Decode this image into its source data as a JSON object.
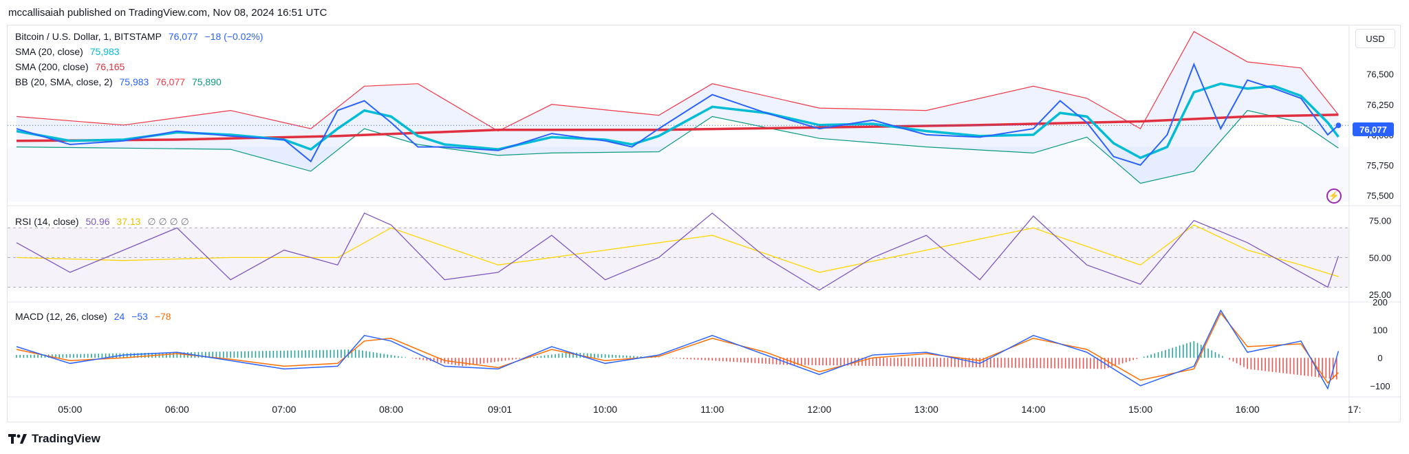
{
  "publisher": "mccallisaiah published on TradingView.com, Nov 08, 2024 16:51 UTC",
  "brand": "TradingView",
  "currency_button": "USD",
  "last_price_tag": "76,077",
  "colors": {
    "price": "#2962ff",
    "sma20": "#00bcd4",
    "sma200": "#e03040",
    "bb_upper": "#f23645",
    "bb_lower": "#089981",
    "bb_fill": "#2962ff",
    "rsi": "#7e57c2",
    "rsi_ma": "#ffd600",
    "macd": "#2962ff",
    "signal": "#ff6d00",
    "hist_pos": "#26a69a",
    "hist_neg": "#ef5350"
  },
  "legend": {
    "main": {
      "name": "Bitcoin / U.S. Dollar, 1, BITSTAMP",
      "value": "76,077",
      "change": "−18 (−0.02%)"
    },
    "sma20": {
      "name": "SMA (20, close)",
      "value": "75,983"
    },
    "sma200": {
      "name": "SMA (200, close)",
      "value": "76,165"
    },
    "bb": {
      "name": "BB (20, SMA, close, 2)",
      "v1": "75,983",
      "v2": "76,077",
      "v3": "75,890"
    },
    "rsi": {
      "name": "RSI (14, close)",
      "v1": "50.96",
      "v2": "37.13",
      "rest": "∅ ∅ ∅ ∅"
    },
    "macd": {
      "name": "MACD (12, 26, close)",
      "v1": "24",
      "v2": "−53",
      "v3": "−78"
    }
  },
  "chart_data": [
    {
      "type": "line",
      "title": "Bitcoin / U.S. Dollar, 1, BITSTAMP",
      "x_ticks": [
        "05:00",
        "06:00",
        "07:00",
        "08:00",
        "09:01",
        "10:00",
        "11:00",
        "12:00",
        "13:00",
        "14:00",
        "15:00",
        "16:00",
        "17:"
      ],
      "y_ticks": [
        "76,500",
        "76,250",
        "76,000",
        "75,750",
        "75,500"
      ],
      "ylim": [
        75450,
        76900
      ],
      "series": [
        {
          "name": "price",
          "x": [
            "04:30",
            "05:00",
            "05:30",
            "06:00",
            "06:30",
            "07:00",
            "07:15",
            "07:30",
            "07:45",
            "08:00",
            "08:15",
            "08:30",
            "09:00",
            "09:30",
            "10:00",
            "10:15",
            "10:30",
            "11:00",
            "11:30",
            "12:00",
            "12:30",
            "13:00",
            "13:30",
            "14:00",
            "14:15",
            "14:30",
            "14:45",
            "15:00",
            "15:15",
            "15:30",
            "15:45",
            "16:00",
            "16:15",
            "16:30",
            "16:45",
            "16:51"
          ],
          "values": [
            76050,
            75920,
            75950,
            76030,
            75990,
            75960,
            75780,
            76200,
            76280,
            76100,
            75900,
            75900,
            75870,
            76010,
            75950,
            75900,
            76050,
            76330,
            76180,
            76050,
            76120,
            76000,
            75980,
            76050,
            76280,
            76100,
            75820,
            75750,
            76000,
            76580,
            76050,
            76450,
            76380,
            76300,
            76000,
            76077
          ]
        },
        {
          "name": "SMA (20, close)",
          "x": [
            "04:30",
            "05:00",
            "05:30",
            "06:00",
            "06:30",
            "07:00",
            "07:15",
            "07:30",
            "07:45",
            "08:00",
            "08:15",
            "08:30",
            "09:00",
            "09:30",
            "10:00",
            "10:15",
            "10:30",
            "11:00",
            "11:30",
            "12:00",
            "12:30",
            "13:00",
            "13:30",
            "14:00",
            "14:15",
            "14:30",
            "14:45",
            "15:00",
            "15:15",
            "15:30",
            "15:45",
            "16:00",
            "16:15",
            "16:30",
            "16:45",
            "16:51"
          ],
          "values": [
            76030,
            75950,
            75960,
            76020,
            76000,
            75960,
            75880,
            76050,
            76200,
            76150,
            75990,
            75920,
            75880,
            75980,
            75960,
            75920,
            75990,
            76230,
            76180,
            76080,
            76090,
            76030,
            75990,
            76000,
            76180,
            76150,
            75930,
            75810,
            75900,
            76350,
            76420,
            76380,
            76400,
            76320,
            76100,
            75983
          ]
        },
        {
          "name": "SMA (200, close)",
          "x": [
            "04:30",
            "06:00",
            "07:30",
            "09:00",
            "10:30",
            "12:00",
            "13:30",
            "15:00",
            "16:00",
            "16:51"
          ],
          "values": [
            75950,
            75960,
            75990,
            76040,
            76040,
            76060,
            76080,
            76110,
            76150,
            76165
          ]
        },
        {
          "name": "BB upper",
          "x": [
            "04:30",
            "05:30",
            "06:30",
            "07:15",
            "07:45",
            "08:15",
            "09:00",
            "09:30",
            "10:30",
            "11:00",
            "12:00",
            "13:00",
            "14:00",
            "14:30",
            "15:00",
            "15:30",
            "16:00",
            "16:30",
            "16:51"
          ],
          "values": [
            76150,
            76080,
            76200,
            76050,
            76400,
            76420,
            76030,
            76250,
            76160,
            76420,
            76220,
            76200,
            76400,
            76300,
            76050,
            76850,
            76600,
            76550,
            76165
          ]
        },
        {
          "name": "BB lower",
          "x": [
            "04:30",
            "05:30",
            "06:30",
            "07:15",
            "07:45",
            "08:15",
            "09:00",
            "09:30",
            "10:30",
            "11:00",
            "12:00",
            "13:00",
            "14:00",
            "14:30",
            "15:00",
            "15:30",
            "16:00",
            "16:30",
            "16:51"
          ],
          "values": [
            75900,
            75890,
            75880,
            75700,
            76050,
            75920,
            75830,
            75850,
            75860,
            76150,
            75970,
            75900,
            75850,
            75980,
            75600,
            75700,
            76200,
            76100,
            75890
          ]
        }
      ]
    },
    {
      "type": "line",
      "title": "RSI (14, close)",
      "y_ticks": [
        "75.00",
        "50.00",
        "25.00"
      ],
      "ylim": [
        20,
        85
      ],
      "series": [
        {
          "name": "RSI",
          "x": [
            "04:30",
            "05:00",
            "05:30",
            "06:00",
            "06:30",
            "07:00",
            "07:30",
            "07:45",
            "08:00",
            "08:30",
            "09:00",
            "09:30",
            "10:00",
            "10:30",
            "11:00",
            "11:30",
            "12:00",
            "12:30",
            "13:00",
            "13:30",
            "14:00",
            "14:30",
            "15:00",
            "15:30",
            "16:00",
            "16:30",
            "16:45",
            "16:51"
          ],
          "values": [
            60,
            40,
            55,
            70,
            35,
            55,
            45,
            80,
            72,
            35,
            40,
            65,
            35,
            50,
            80,
            50,
            28,
            50,
            65,
            35,
            78,
            45,
            32,
            75,
            60,
            40,
            30,
            50.96
          ]
        },
        {
          "name": "RSI MA",
          "x": [
            "04:30",
            "05:30",
            "06:30",
            "07:30",
            "08:00",
            "09:00",
            "10:00",
            "11:00",
            "12:00",
            "13:00",
            "14:00",
            "15:00",
            "15:30",
            "16:00",
            "16:30",
            "16:51"
          ],
          "values": [
            50,
            48,
            50,
            50,
            70,
            45,
            55,
            65,
            40,
            55,
            70,
            45,
            72,
            55,
            45,
            37.13
          ]
        }
      ]
    },
    {
      "type": "line",
      "title": "MACD (12, 26, close)",
      "y_ticks": [
        "200",
        "100",
        "0",
        "−100"
      ],
      "ylim": [
        -140,
        200
      ],
      "series": [
        {
          "name": "MACD",
          "x": [
            "04:30",
            "05:00",
            "05:30",
            "06:00",
            "06:30",
            "07:00",
            "07:30",
            "07:45",
            "08:00",
            "08:30",
            "09:00",
            "09:30",
            "10:00",
            "10:30",
            "11:00",
            "11:30",
            "12:00",
            "12:30",
            "13:00",
            "13:30",
            "14:00",
            "14:30",
            "15:00",
            "15:30",
            "15:45",
            "16:00",
            "16:30",
            "16:45",
            "16:51"
          ],
          "values": [
            40,
            -20,
            10,
            20,
            -10,
            -40,
            -30,
            80,
            60,
            -30,
            -40,
            40,
            -20,
            10,
            80,
            10,
            -60,
            10,
            20,
            -20,
            80,
            20,
            -100,
            -30,
            170,
            20,
            60,
            -110,
            24
          ]
        },
        {
          "name": "Signal",
          "x": [
            "04:30",
            "05:00",
            "05:30",
            "06:00",
            "06:30",
            "07:00",
            "07:30",
            "07:45",
            "08:00",
            "08:30",
            "09:00",
            "09:30",
            "10:00",
            "10:30",
            "11:00",
            "11:30",
            "12:00",
            "12:30",
            "13:00",
            "13:30",
            "14:00",
            "14:30",
            "15:00",
            "15:30",
            "15:45",
            "16:00",
            "16:30",
            "16:45",
            "16:51"
          ],
          "values": [
            30,
            -10,
            0,
            15,
            -5,
            -30,
            -20,
            60,
            70,
            -10,
            -35,
            30,
            -10,
            5,
            70,
            20,
            -50,
            0,
            15,
            -10,
            70,
            30,
            -80,
            -40,
            160,
            40,
            50,
            -90,
            -53
          ]
        },
        {
          "name": "Histogram",
          "values_note": "",
          "x": [
            "04:30",
            "07:40",
            "08:40",
            "09:40",
            "11:40",
            "14:40",
            "15:30",
            "16:00",
            "16:51"
          ],
          "values": [
            10,
            30,
            -30,
            20,
            -25,
            -40,
            60,
            -40,
            -78
          ]
        }
      ]
    }
  ]
}
